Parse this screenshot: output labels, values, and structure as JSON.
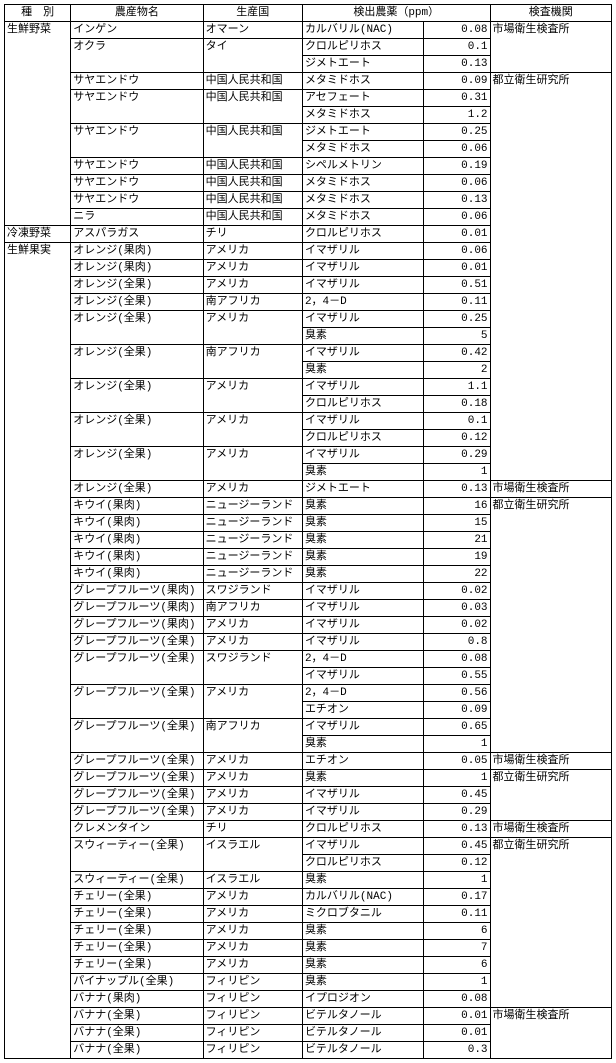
{
  "table": {
    "headers": {
      "h1": "種　別",
      "h2": "農産物名",
      "h3": "生産国",
      "h4": "検出農薬（ppm）",
      "h5": "検査機関"
    },
    "rows": [
      {
        "cat": "生鮮野菜",
        "prod": "インゲン",
        "ctry": "オマーン",
        "chem": "カルバリル(NAC)",
        "val": "0.08",
        "org": "市場衛生検査所",
        "catClass": "open-b",
        "orgClass": "open-b"
      },
      {
        "cat": "",
        "prod": "オクラ",
        "ctry": "タイ",
        "chem": "クロルピリホス",
        "val": "0.1",
        "org": "",
        "catClass": "open-tb",
        "prodClass": "open-b",
        "ctryClass": "open-b",
        "orgClass": "open-tb"
      },
      {
        "cat": "",
        "prod": "",
        "ctry": "",
        "chem": "ジメトエート",
        "val": "0.13",
        "org": "",
        "catClass": "open-tb",
        "prodClass": "open-t",
        "ctryClass": "open-t",
        "orgClass": "open-t"
      },
      {
        "cat": "",
        "prod": "サヤエンドウ",
        "ctry": "中国人民共和国",
        "chem": "メタミドホス",
        "val": "0.09",
        "org": "都立衛生研究所",
        "catClass": "open-tb",
        "orgClass": "open-b"
      },
      {
        "cat": "",
        "prod": "サヤエンドウ",
        "ctry": "中国人民共和国",
        "chem": "アセフェート",
        "val": "0.31",
        "org": "",
        "catClass": "open-tb",
        "prodClass": "open-b",
        "ctryClass": "open-b",
        "orgClass": "open-tb"
      },
      {
        "cat": "",
        "prod": "",
        "ctry": "",
        "chem": "メタミドホス",
        "val": "1.2",
        "org": "",
        "catClass": "open-tb",
        "prodClass": "open-t",
        "ctryClass": "open-t",
        "orgClass": "open-tb"
      },
      {
        "cat": "",
        "prod": "サヤエンドウ",
        "ctry": "中国人民共和国",
        "chem": "ジメトエート",
        "val": "0.25",
        "org": "",
        "catClass": "open-tb",
        "prodClass": "open-b",
        "ctryClass": "open-b",
        "orgClass": "open-tb"
      },
      {
        "cat": "",
        "prod": "",
        "ctry": "",
        "chem": "メタミドホス",
        "val": "0.06",
        "org": "",
        "catClass": "open-tb",
        "prodClass": "open-t",
        "ctryClass": "open-t",
        "orgClass": "open-tb"
      },
      {
        "cat": "",
        "prod": "サヤエンドウ",
        "ctry": "中国人民共和国",
        "chem": "シペルメトリン",
        "val": "0.19",
        "org": "",
        "catClass": "open-tb",
        "orgClass": "open-tb"
      },
      {
        "cat": "",
        "prod": "サヤエンドウ",
        "ctry": "中国人民共和国",
        "chem": "メタミドホス",
        "val": "0.06",
        "org": "",
        "catClass": "open-tb",
        "orgClass": "open-tb"
      },
      {
        "cat": "",
        "prod": "サヤエンドウ",
        "ctry": "中国人民共和国",
        "chem": "メタミドホス",
        "val": "0.13",
        "org": "",
        "catClass": "open-tb",
        "orgClass": "open-tb"
      },
      {
        "cat": "",
        "prod": "ニラ",
        "ctry": "中国人民共和国",
        "chem": "メタミドホス",
        "val": "0.06",
        "org": "",
        "catClass": "open-t",
        "orgClass": "open-tb"
      },
      {
        "cat": "冷凍野菜",
        "prod": "アスパラガス",
        "ctry": "チリ",
        "chem": "クロルピリホス",
        "val": "0.01",
        "org": "",
        "orgClass": "open-tb"
      },
      {
        "cat": "生鮮果実",
        "prod": "オレンジ(果肉)",
        "ctry": "アメリカ",
        "chem": "イマザリル",
        "val": "0.06",
        "org": "",
        "catClass": "open-b",
        "orgClass": "open-tb"
      },
      {
        "cat": "",
        "prod": "オレンジ(果肉)",
        "ctry": "アメリカ",
        "chem": "イマザリル",
        "val": "0.01",
        "org": "",
        "catClass": "open-tb",
        "orgClass": "open-tb"
      },
      {
        "cat": "",
        "prod": "オレンジ(全果)",
        "ctry": "アメリカ",
        "chem": "イマザリル",
        "val": "0.51",
        "org": "",
        "catClass": "open-tb",
        "orgClass": "open-tb"
      },
      {
        "cat": "",
        "prod": "オレンジ(全果)",
        "ctry": "南アフリカ",
        "chem": "2，4－D",
        "val": "0.11",
        "org": "",
        "catClass": "open-tb",
        "orgClass": "open-tb"
      },
      {
        "cat": "",
        "prod": "オレンジ(全果)",
        "ctry": "アメリカ",
        "chem": "イマザリル",
        "val": "0.25",
        "org": "",
        "catClass": "open-tb",
        "prodClass": "open-b",
        "ctryClass": "open-b",
        "orgClass": "open-tb"
      },
      {
        "cat": "",
        "prod": "",
        "ctry": "",
        "chem": "臭素",
        "val": "5",
        "org": "",
        "catClass": "open-tb",
        "prodClass": "open-t",
        "ctryClass": "open-t",
        "orgClass": "open-tb"
      },
      {
        "cat": "",
        "prod": "オレンジ(全果)",
        "ctry": "南アフリカ",
        "chem": "イマザリル",
        "val": "0.42",
        "org": "",
        "catClass": "open-tb",
        "prodClass": "open-b",
        "ctryClass": "open-b",
        "orgClass": "open-tb"
      },
      {
        "cat": "",
        "prod": "",
        "ctry": "",
        "chem": "臭素",
        "val": "2",
        "org": "",
        "catClass": "open-tb",
        "prodClass": "open-t",
        "ctryClass": "open-t",
        "orgClass": "open-tb"
      },
      {
        "cat": "",
        "prod": "オレンジ(全果)",
        "ctry": "アメリカ",
        "chem": "イマザリル",
        "val": "1.1",
        "org": "",
        "catClass": "open-tb",
        "prodClass": "open-b",
        "ctryClass": "open-b",
        "orgClass": "open-tb"
      },
      {
        "cat": "",
        "prod": "",
        "ctry": "",
        "chem": "クロルピリホス",
        "val": "0.18",
        "org": "",
        "catClass": "open-tb",
        "prodClass": "open-t",
        "ctryClass": "open-t",
        "orgClass": "open-tb"
      },
      {
        "cat": "",
        "prod": "オレンジ(全果)",
        "ctry": "アメリカ",
        "chem": "イマザリル",
        "val": "0.1",
        "org": "",
        "catClass": "open-tb",
        "prodClass": "open-b",
        "ctryClass": "open-b",
        "orgClass": "open-tb"
      },
      {
        "cat": "",
        "prod": "",
        "ctry": "",
        "chem": "クロルピリホス",
        "val": "0.12",
        "org": "",
        "catClass": "open-tb",
        "prodClass": "open-t",
        "ctryClass": "open-t",
        "orgClass": "open-tb"
      },
      {
        "cat": "",
        "prod": "オレンジ(全果)",
        "ctry": "アメリカ",
        "chem": "イマザリル",
        "val": "0.29",
        "org": "",
        "catClass": "open-tb",
        "prodClass": "open-b",
        "ctryClass": "open-b",
        "orgClass": "open-tb"
      },
      {
        "cat": "",
        "prod": "",
        "ctry": "",
        "chem": "臭素",
        "val": "1",
        "org": "",
        "catClass": "open-tb",
        "prodClass": "open-t",
        "ctryClass": "open-t",
        "orgClass": "open-t"
      },
      {
        "cat": "",
        "prod": "オレンジ(全果)",
        "ctry": "アメリカ",
        "chem": "ジメトエート",
        "val": "0.13",
        "org": "市場衛生検査所",
        "catClass": "open-tb"
      },
      {
        "cat": "",
        "prod": "キウイ(果肉)",
        "ctry": "ニュージーランド",
        "chem": "臭素",
        "val": "16",
        "org": "都立衛生研究所",
        "catClass": "open-tb",
        "orgClass": "open-b"
      },
      {
        "cat": "",
        "prod": "キウイ(果肉)",
        "ctry": "ニュージーランド",
        "chem": "臭素",
        "val": "15",
        "org": "",
        "catClass": "open-tb",
        "orgClass": "open-tb"
      },
      {
        "cat": "",
        "prod": "キウイ(果肉)",
        "ctry": "ニュージーランド",
        "chem": "臭素",
        "val": "21",
        "org": "",
        "catClass": "open-tb",
        "orgClass": "open-tb"
      },
      {
        "cat": "",
        "prod": "キウイ(果肉)",
        "ctry": "ニュージーランド",
        "chem": "臭素",
        "val": "19",
        "org": "",
        "catClass": "open-tb",
        "orgClass": "open-tb"
      },
      {
        "cat": "",
        "prod": "キウイ(果肉)",
        "ctry": "ニュージーランド",
        "chem": "臭素",
        "val": "22",
        "org": "",
        "catClass": "open-tb",
        "orgClass": "open-tb"
      },
      {
        "cat": "",
        "prod": "グレープフルーツ(果肉)",
        "ctry": "スワジランド",
        "chem": "イマザリル",
        "val": "0.02",
        "org": "",
        "catClass": "open-tb",
        "orgClass": "open-tb"
      },
      {
        "cat": "",
        "prod": "グレープフルーツ(果肉)",
        "ctry": "南アフリカ",
        "chem": "イマザリル",
        "val": "0.03",
        "org": "",
        "catClass": "open-tb",
        "orgClass": "open-tb"
      },
      {
        "cat": "",
        "prod": "グレープフルーツ(果肉)",
        "ctry": "アメリカ",
        "chem": "イマザリル",
        "val": "0.02",
        "org": "",
        "catClass": "open-tb",
        "orgClass": "open-tb"
      },
      {
        "cat": "",
        "prod": "グレープフルーツ(全果)",
        "ctry": "アメリカ",
        "chem": "イマザリル",
        "val": "0.8",
        "org": "",
        "catClass": "open-tb",
        "orgClass": "open-tb"
      },
      {
        "cat": "",
        "prod": "グレープフルーツ(全果)",
        "ctry": "スワジランド",
        "chem": "2，4－D",
        "val": "0.08",
        "org": "",
        "catClass": "open-tb",
        "prodClass": "open-b",
        "ctryClass": "open-b",
        "orgClass": "open-tb"
      },
      {
        "cat": "",
        "prod": "",
        "ctry": "",
        "chem": "イマザリル",
        "val": "0.55",
        "org": "",
        "catClass": "open-tb",
        "prodClass": "open-t",
        "ctryClass": "open-t",
        "orgClass": "open-tb"
      },
      {
        "cat": "",
        "prod": "グレープフルーツ(全果)",
        "ctry": "アメリカ",
        "chem": "2，4－D",
        "val": "0.56",
        "org": "",
        "catClass": "open-tb",
        "prodClass": "open-b",
        "ctryClass": "open-b",
        "orgClass": "open-tb"
      },
      {
        "cat": "",
        "prod": "",
        "ctry": "",
        "chem": "エチオン",
        "val": "0.09",
        "org": "",
        "catClass": "open-tb",
        "prodClass": "open-t",
        "ctryClass": "open-t",
        "orgClass": "open-tb"
      },
      {
        "cat": "",
        "prod": "グレープフルーツ(全果)",
        "ctry": "南アフリカ",
        "chem": "イマザリル",
        "val": "0.65",
        "org": "",
        "catClass": "open-tb",
        "prodClass": "open-b",
        "ctryClass": "open-b",
        "orgClass": "open-tb"
      },
      {
        "cat": "",
        "prod": "",
        "ctry": "",
        "chem": "臭素",
        "val": "1",
        "org": "",
        "catClass": "open-tb",
        "prodClass": "open-t",
        "ctryClass": "open-t",
        "orgClass": "open-t"
      },
      {
        "cat": "",
        "prod": "グレープフルーツ(全果)",
        "ctry": "アメリカ",
        "chem": "エチオン",
        "val": "0.05",
        "org": "市場衛生検査所",
        "catClass": "open-tb"
      },
      {
        "cat": "",
        "prod": "グレープフルーツ(全果)",
        "ctry": "アメリカ",
        "chem": "臭素",
        "val": "1",
        "org": "都立衛生研究所",
        "catClass": "open-tb",
        "orgClass": "open-b"
      },
      {
        "cat": "",
        "prod": "グレープフルーツ(全果)",
        "ctry": "アメリカ",
        "chem": "イマザリル",
        "val": "0.45",
        "org": "",
        "catClass": "open-tb",
        "orgClass": "open-tb"
      },
      {
        "cat": "",
        "prod": "グレープフルーツ(全果)",
        "ctry": "アメリカ",
        "chem": "イマザリル",
        "val": "0.29",
        "org": "",
        "catClass": "open-tb",
        "orgClass": "open-t"
      },
      {
        "cat": "",
        "prod": "クレメンタイン",
        "ctry": "チリ",
        "chem": "クロルピリホス",
        "val": "0.13",
        "org": "市場衛生検査所",
        "catClass": "open-tb"
      },
      {
        "cat": "",
        "prod": "スウィーティー(全果)",
        "ctry": "イスラエル",
        "chem": "イマザリル",
        "val": "0.45",
        "org": "都立衛生研究所",
        "catClass": "open-tb",
        "prodClass": "open-b",
        "ctryClass": "open-b",
        "orgClass": "open-b"
      },
      {
        "cat": "",
        "prod": "",
        "ctry": "",
        "chem": "クロルピリホス",
        "val": "0.12",
        "org": "",
        "catClass": "open-tb",
        "prodClass": "open-t",
        "ctryClass": "open-t",
        "orgClass": "open-tb"
      },
      {
        "cat": "",
        "prod": "スウィーティー(全果)",
        "ctry": "イスラエル",
        "chem": "臭素",
        "val": "1",
        "org": "",
        "catClass": "open-tb",
        "orgClass": "open-tb"
      },
      {
        "cat": "",
        "prod": "チェリー(全果)",
        "ctry": "アメリカ",
        "chem": "カルバリル(NAC)",
        "val": "0.17",
        "org": "",
        "catClass": "open-tb",
        "orgClass": "open-tb"
      },
      {
        "cat": "",
        "prod": "チェリー(全果)",
        "ctry": "アメリカ",
        "chem": "ミクロブタニル",
        "val": "0.11",
        "org": "",
        "catClass": "open-tb",
        "orgClass": "open-tb"
      },
      {
        "cat": "",
        "prod": "チェリー(全果)",
        "ctry": "アメリカ",
        "chem": "臭素",
        "val": "6",
        "org": "",
        "catClass": "open-tb",
        "orgClass": "open-tb"
      },
      {
        "cat": "",
        "prod": "チェリー(全果)",
        "ctry": "アメリカ",
        "chem": "臭素",
        "val": "7",
        "org": "",
        "catClass": "open-tb",
        "orgClass": "open-tb"
      },
      {
        "cat": "",
        "prod": "チェリー(全果)",
        "ctry": "アメリカ",
        "chem": "臭素",
        "val": "6",
        "org": "",
        "catClass": "open-tb",
        "orgClass": "open-tb"
      },
      {
        "cat": "",
        "prod": "パイナップル(全果)",
        "ctry": "フィリピン",
        "chem": "臭素",
        "val": "1",
        "org": "",
        "catClass": "open-tb",
        "orgClass": "open-tb"
      },
      {
        "cat": "",
        "prod": "バナナ(果肉)",
        "ctry": "フィリピン",
        "chem": "イプロジオン",
        "val": "0.08",
        "org": "",
        "catClass": "open-tb",
        "orgClass": "open-t"
      },
      {
        "cat": "",
        "prod": "バナナ(全果)",
        "ctry": "フィリピン",
        "chem": "ビテルタノール",
        "val": "0.01",
        "org": "市場衛生検査所",
        "catClass": "open-tb",
        "orgClass": "open-b"
      },
      {
        "cat": "",
        "prod": "バナナ(全果)",
        "ctry": "フィリピン",
        "chem": "ビテルタノール",
        "val": "0.01",
        "org": "",
        "catClass": "open-tb",
        "orgClass": "open-tb"
      },
      {
        "cat": "",
        "prod": "バナナ(全果)",
        "ctry": "フィリピン",
        "chem": "ビテルタノール",
        "val": "0.3",
        "org": "",
        "catClass": "open-t",
        "orgClass": "open-t"
      }
    ]
  }
}
